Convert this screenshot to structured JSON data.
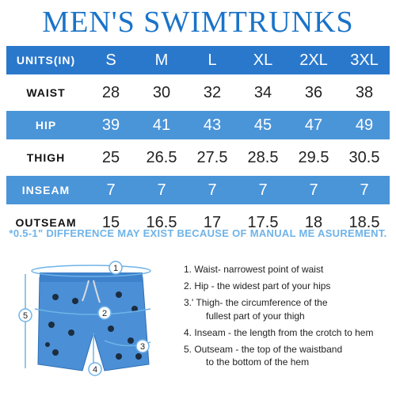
{
  "title": "MEN'S SWIMTRUNKS",
  "table": {
    "header": {
      "label": "UNITS(IN)",
      "sizes": [
        "S",
        "M",
        "L",
        "XL",
        "2XL",
        "3XL"
      ]
    },
    "rows": [
      {
        "label": "WAIST",
        "values": [
          "28",
          "30",
          "32",
          "34",
          "36",
          "38"
        ]
      },
      {
        "label": "HIP",
        "values": [
          "39",
          "41",
          "43",
          "45",
          "47",
          "49"
        ]
      },
      {
        "label": "THIGH",
        "values": [
          "25",
          "26.5",
          "27.5",
          "28.5",
          "29.5",
          "30.5"
        ]
      },
      {
        "label": "INSEAM",
        "values": [
          "7",
          "7",
          "7",
          "7",
          "7",
          "7"
        ]
      },
      {
        "label": "OUTSEAM",
        "values": [
          "15",
          "16.5",
          "17",
          "17.5",
          "18",
          "18.5"
        ]
      }
    ]
  },
  "note": "*0.5-1\" DIFFERENCE MAY EXIST BECAUSE OF MANUAL ME ASUREMENT.",
  "diagram": {
    "markers": [
      "1",
      "2",
      "3",
      "4",
      "5"
    ]
  },
  "legend": [
    {
      "line1": "1. Waist- narrowest point of waist",
      "line2": ""
    },
    {
      "line1": "2. Hip - the widest part of your hips",
      "line2": ""
    },
    {
      "line1": "3.' Thigh- the circumference of the",
      "line2": "fullest part of your thigh"
    },
    {
      "line1": "4. Inseam - the length from the crotch to hem",
      "line2": ""
    },
    {
      "line1": "5. Outseam - the top of the waistband",
      "line2": "to the bottom of the hem"
    }
  ],
  "colors": {
    "primary": "#2a78cc",
    "secondary": "#4a94d8",
    "shorts": "#4b8fd6",
    "note": "#6fb3e8"
  }
}
